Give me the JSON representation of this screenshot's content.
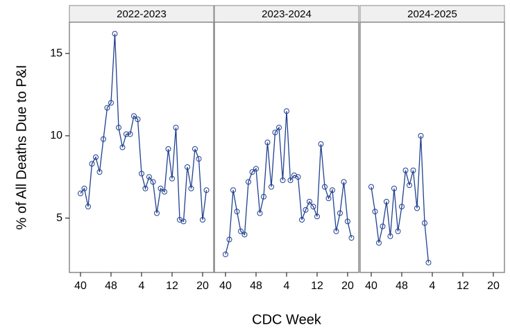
{
  "chart_data": [
    {
      "type": "line",
      "title": "2022-2023",
      "ylabel": "% of All Deaths Due to P&I",
      "color": "#1f3f8f",
      "categories": [
        "40",
        null,
        null,
        null,
        null,
        null,
        null,
        null,
        "48",
        null,
        null,
        null,
        null,
        null,
        null,
        null,
        "4",
        null,
        null,
        null,
        null,
        null,
        null,
        null,
        "12",
        null,
        null,
        null,
        null,
        null,
        null,
        null,
        "20",
        null
      ],
      "values": [
        6.5,
        6.8,
        5.7,
        8.3,
        8.7,
        7.8,
        9.8,
        11.7,
        12.0,
        16.2,
        10.5,
        9.3,
        10.1,
        10.1,
        11.2,
        11.0,
        7.7,
        6.8,
        7.5,
        7.2,
        5.3,
        6.8,
        6.6,
        9.2,
        7.4,
        10.5,
        4.9,
        4.8,
        8.1,
        6.8,
        9.2,
        8.6,
        4.9,
        6.7
      ],
      "ylim": [
        1.7,
        16.9
      ],
      "yticks": [
        5,
        10,
        15
      ]
    },
    {
      "type": "line",
      "title": "2023-2024",
      "xlabel": "CDC Week",
      "color": "#1f3f8f",
      "categories": [
        "40",
        null,
        null,
        null,
        null,
        null,
        null,
        null,
        "48",
        null,
        null,
        null,
        null,
        null,
        null,
        null,
        "4",
        null,
        null,
        null,
        null,
        null,
        null,
        null,
        "12",
        null,
        null,
        null,
        null,
        null,
        null,
        null,
        "20",
        null
      ],
      "values": [
        2.8,
        3.7,
        6.7,
        5.4,
        4.2,
        4.0,
        7.2,
        7.8,
        8.0,
        5.3,
        6.3,
        9.6,
        6.9,
        10.2,
        10.5,
        7.3,
        11.5,
        7.3,
        7.6,
        7.5,
        4.9,
        5.5,
        6.0,
        5.7,
        5.1,
        9.5,
        6.9,
        6.2,
        6.7,
        4.2,
        5.3,
        7.2,
        4.8,
        3.8
      ],
      "ylim": [
        1.7,
        16.9
      ]
    },
    {
      "type": "line",
      "title": "2024-2025",
      "color": "#1f3f8f",
      "categories": [
        "40",
        null,
        null,
        null,
        null,
        null,
        null,
        null,
        "48",
        null,
        null,
        null,
        null,
        null,
        null,
        null,
        "4",
        null,
        null,
        null,
        null,
        null,
        null,
        null,
        "12",
        null,
        null,
        null,
        null,
        null,
        null,
        null,
        "20",
        null
      ],
      "values": [
        6.9,
        5.4,
        3.5,
        4.5,
        6.0,
        3.9,
        6.8,
        4.2,
        5.7,
        7.9,
        7.0,
        7.9,
        5.6,
        10.0,
        4.7,
        2.3,
        null,
        null,
        null,
        null,
        null,
        null,
        null,
        null,
        null,
        null,
        null,
        null,
        null,
        null,
        null,
        null,
        null,
        null
      ],
      "ylim": [
        1.7,
        16.9
      ]
    }
  ]
}
